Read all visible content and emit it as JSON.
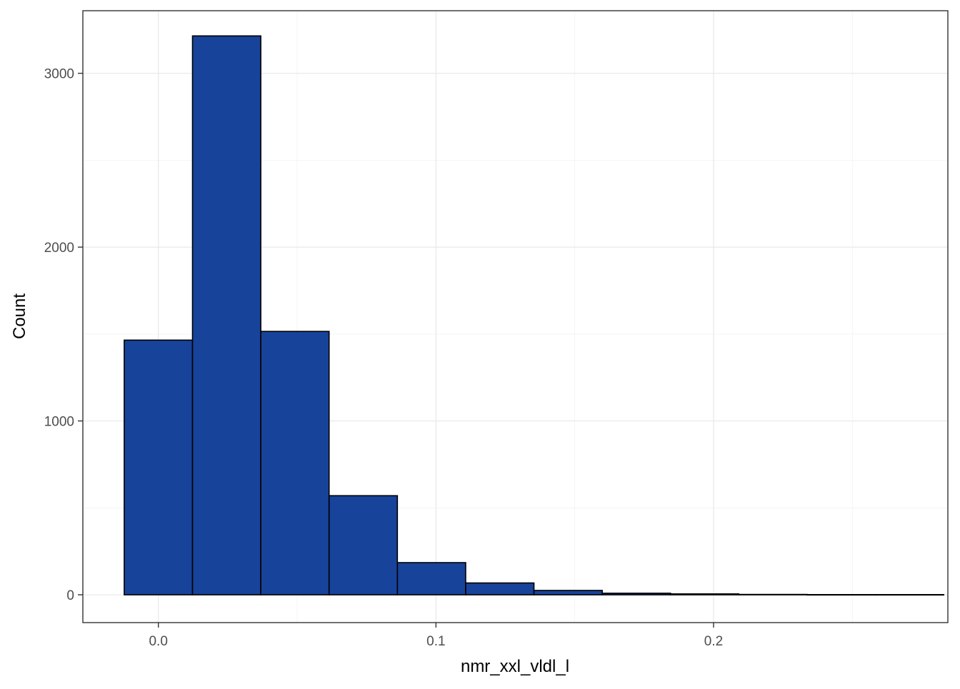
{
  "chart_data": {
    "type": "bar",
    "subtype": "histogram",
    "xlabel": "nmr_xxl_vldl_l",
    "ylabel": "Count",
    "xlim": [
      -0.0272,
      0.2844
    ],
    "ylim": [
      -160,
      3360
    ],
    "x_ticks": [
      {
        "value": 0.0,
        "label": "0.0"
      },
      {
        "value": 0.1,
        "label": "0.1"
      },
      {
        "value": 0.2,
        "label": "0.2"
      }
    ],
    "y_ticks": [
      {
        "value": 0,
        "label": "0"
      },
      {
        "value": 1000,
        "label": "1000"
      },
      {
        "value": 2000,
        "label": "2000"
      },
      {
        "value": 3000,
        "label": "3000"
      }
    ],
    "bins": [
      {
        "x0": -0.0123,
        "x1": 0.0123,
        "count": 1465
      },
      {
        "x0": 0.0123,
        "x1": 0.0369,
        "count": 3215
      },
      {
        "x0": 0.0369,
        "x1": 0.0615,
        "count": 1515
      },
      {
        "x0": 0.0615,
        "x1": 0.0861,
        "count": 570
      },
      {
        "x0": 0.0861,
        "x1": 0.1107,
        "count": 185
      },
      {
        "x0": 0.1107,
        "x1": 0.1353,
        "count": 68
      },
      {
        "x0": 0.1353,
        "x1": 0.1599,
        "count": 25
      },
      {
        "x0": 0.1599,
        "x1": 0.1845,
        "count": 9
      },
      {
        "x0": 0.1845,
        "x1": 0.2091,
        "count": 5
      },
      {
        "x0": 0.2091,
        "x1": 0.2337,
        "count": 2
      },
      {
        "x0": 0.2337,
        "x1": 0.2583,
        "count": 1
      },
      {
        "x0": 0.2583,
        "x1": 0.2829,
        "count": 1
      }
    ],
    "bar_fill": "#18439A",
    "bar_outline": "#000000",
    "grid": true,
    "theme": "bw"
  }
}
